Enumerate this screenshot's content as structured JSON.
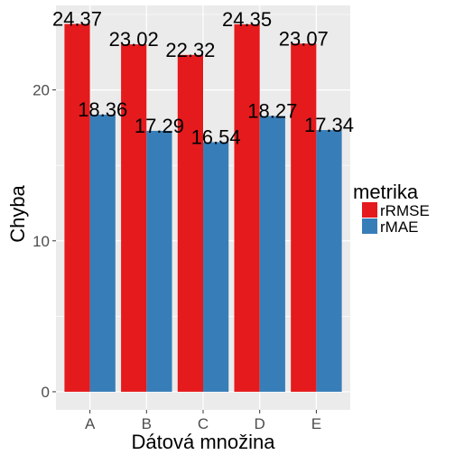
{
  "chart_data": {
    "type": "bar",
    "categories": [
      "A",
      "B",
      "C",
      "D",
      "E"
    ],
    "series": [
      {
        "name": "rRMSE",
        "values": [
          24.37,
          23.02,
          22.32,
          24.35,
          23.07
        ],
        "color": "#e41a1c"
      },
      {
        "name": "rMAE",
        "values": [
          18.36,
          17.29,
          16.54,
          18.27,
          17.34
        ],
        "color": "#377eb8"
      }
    ],
    "data_labels": [
      [
        "24.37",
        "23.02",
        "22.32",
        "24.35",
        "23.07"
      ],
      [
        "18.36",
        "17.29",
        "16.54",
        "18.27",
        "17.34"
      ]
    ],
    "xlabel": "Dátová množina",
    "ylabel": "Chyba",
    "ylim": [
      -1.2,
      25.6
    ],
    "yticks": [
      0,
      10,
      20
    ],
    "ytick_labels": [
      "0",
      "10",
      "20"
    ],
    "legend": {
      "title": "metrika",
      "entries": [
        "rRMSE",
        "rMAE"
      ],
      "position": "right"
    },
    "grid": true,
    "panel_background": "#ebebeb",
    "grid_color": "#ffffff"
  }
}
